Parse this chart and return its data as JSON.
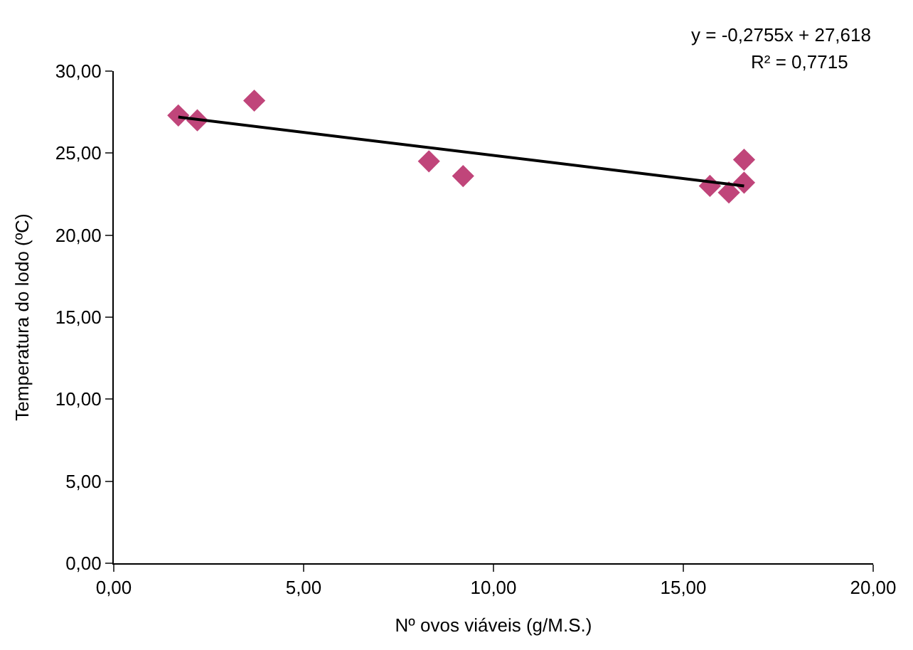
{
  "chart_data": {
    "type": "scatter",
    "xlabel": "Nº ovos viáveis (g/M.S.)",
    "ylabel": "Temperatura do lodo (ºC)",
    "xlim": [
      0,
      20
    ],
    "ylim": [
      0,
      30
    ],
    "xticks": [
      {
        "value": 0,
        "label": "0,00"
      },
      {
        "value": 5,
        "label": "5,00"
      },
      {
        "value": 10,
        "label": "10,00"
      },
      {
        "value": 15,
        "label": "15,00"
      },
      {
        "value": 20,
        "label": "20,00"
      }
    ],
    "yticks": [
      {
        "value": 0,
        "label": "0,00"
      },
      {
        "value": 5,
        "label": "5,00"
      },
      {
        "value": 10,
        "label": "10,00"
      },
      {
        "value": 15,
        "label": "15,00"
      },
      {
        "value": 20,
        "label": "20,00"
      },
      {
        "value": 25,
        "label": "25,00"
      },
      {
        "value": 30,
        "label": "30,00"
      }
    ],
    "marker": "diamond",
    "legend": false,
    "series": [
      {
        "color": "#c0457a",
        "x": [
          1.7,
          2.2,
          3.7,
          8.3,
          9.2,
          15.7,
          16.2,
          16.6,
          16.6
        ],
        "values": [
          27.3,
          27.0,
          28.2,
          24.5,
          23.6,
          23.0,
          22.6,
          23.2,
          24.6
        ]
      },
      {
        "type": "line",
        "color": "#000000",
        "marker": "none",
        "x": [
          1.7,
          16.6
        ],
        "values": [
          27.2,
          23.0
        ]
      }
    ],
    "annotations": [
      "y = -0,2755x + 27,618",
      "R² = 0,7715"
    ]
  }
}
